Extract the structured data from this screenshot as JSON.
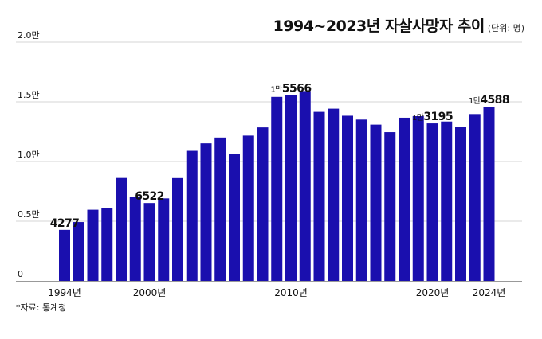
{
  "title": "1994~2023년 자살사망자 추이",
  "unit": "(단위: 명)",
  "source": "*자료: 통계청",
  "colors": {
    "bar": "#1a0fae",
    "grid": "#d6d6d6",
    "axis": "#999999",
    "text": "#111111"
  },
  "chart_data": {
    "type": "bar",
    "title": "1994~2023년 자살사망자 추이",
    "categories": [
      "1994",
      "1995",
      "1996",
      "1997",
      "1998",
      "1999",
      "2000",
      "2001",
      "2002",
      "2003",
      "2004",
      "2005",
      "2006",
      "2007",
      "2008",
      "2009",
      "2010",
      "2011",
      "2012",
      "2013",
      "2014",
      "2015",
      "2016",
      "2017",
      "2018",
      "2019",
      "2020",
      "2021",
      "2022",
      "2023",
      "2024"
    ],
    "values": [
      4277,
      4930,
      5960,
      6068,
      8622,
      7056,
      6522,
      6911,
      8612,
      10898,
      11523,
      12011,
      10653,
      12174,
      12858,
      15413,
      15566,
      15906,
      14160,
      14427,
      13836,
      13513,
      13092,
      12463,
      13670,
      13799,
      13195,
      13352,
      12906,
      13978,
      14588
    ],
    "x_tick_labels": [
      {
        "index": 0,
        "label": "1994년"
      },
      {
        "index": 6,
        "label": "2000년"
      },
      {
        "index": 16,
        "label": "2010년"
      },
      {
        "index": 26,
        "label": "2020년"
      },
      {
        "index": 30,
        "label": "2024년"
      }
    ],
    "y_ticks": [
      {
        "value": 0,
        "label": "0"
      },
      {
        "value": 5000,
        "label": "0.5만"
      },
      {
        "value": 10000,
        "label": "1.0만"
      },
      {
        "value": 15000,
        "label": "1.5만"
      },
      {
        "value": 20000,
        "label": "2.0만"
      }
    ],
    "ylim": [
      0,
      20000
    ],
    "annotations": [
      {
        "index": 0,
        "label": "4277",
        "prefix": ""
      },
      {
        "index": 6,
        "label": "6522",
        "prefix": ""
      },
      {
        "index": 16,
        "label": "5566",
        "prefix": "1만"
      },
      {
        "index": 26,
        "label": "3195",
        "prefix": "1만"
      },
      {
        "index": 30,
        "label": "4588",
        "prefix": "1만"
      }
    ],
    "grid": true,
    "legend": "none"
  }
}
